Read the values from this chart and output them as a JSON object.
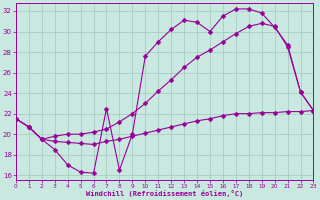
{
  "bg_color": "#c8e8e0",
  "line_color": "#990099",
  "grid_color": "#a0c8c0",
  "xlabel": "Windchill (Refroidissement éolien,°C)",
  "xlim": [
    0,
    23
  ],
  "ylim": [
    15.5,
    32.8
  ],
  "xticks": [
    0,
    1,
    2,
    3,
    4,
    5,
    6,
    7,
    8,
    9,
    10,
    11,
    12,
    13,
    14,
    15,
    16,
    17,
    18,
    19,
    20,
    21,
    22,
    23
  ],
  "yticks": [
    16,
    18,
    20,
    22,
    24,
    26,
    28,
    30,
    32
  ],
  "curve1_x": [
    0,
    1,
    2,
    3,
    4,
    5,
    6,
    7,
    8,
    9,
    10,
    11,
    12,
    13,
    14,
    15,
    16,
    17,
    18,
    19,
    20,
    21,
    22,
    23
  ],
  "curve1_y": [
    21.5,
    20.7,
    19.5,
    18.5,
    17.0,
    16.3,
    16.2,
    22.5,
    16.5,
    20.0,
    27.6,
    29.0,
    30.2,
    31.1,
    30.9,
    30.0,
    31.5,
    32.2,
    32.2,
    31.8,
    30.4,
    28.7,
    24.1,
    22.3
  ],
  "curve2_x": [
    0,
    1,
    2,
    3,
    4,
    5,
    6,
    7,
    8,
    9,
    10,
    11,
    12,
    13,
    14,
    15,
    16,
    17,
    18,
    19,
    20,
    21,
    22,
    23
  ],
  "curve2_y": [
    21.5,
    20.7,
    19.5,
    19.8,
    20.0,
    20.0,
    20.2,
    20.5,
    21.2,
    22.0,
    23.0,
    24.2,
    25.3,
    26.5,
    27.5,
    28.2,
    29.0,
    29.8,
    30.5,
    30.8,
    30.5,
    28.5,
    24.1,
    22.3
  ],
  "curve3_x": [
    0,
    1,
    2,
    3,
    4,
    5,
    6,
    7,
    8,
    9,
    10,
    11,
    12,
    13,
    14,
    15,
    16,
    17,
    18,
    19,
    20,
    21,
    22,
    23
  ],
  "curve3_y": [
    21.5,
    20.7,
    19.5,
    19.3,
    19.2,
    19.1,
    19.0,
    19.3,
    19.5,
    19.8,
    20.1,
    20.4,
    20.7,
    21.0,
    21.3,
    21.5,
    21.8,
    22.0,
    22.0,
    22.1,
    22.1,
    22.2,
    22.2,
    22.3
  ]
}
